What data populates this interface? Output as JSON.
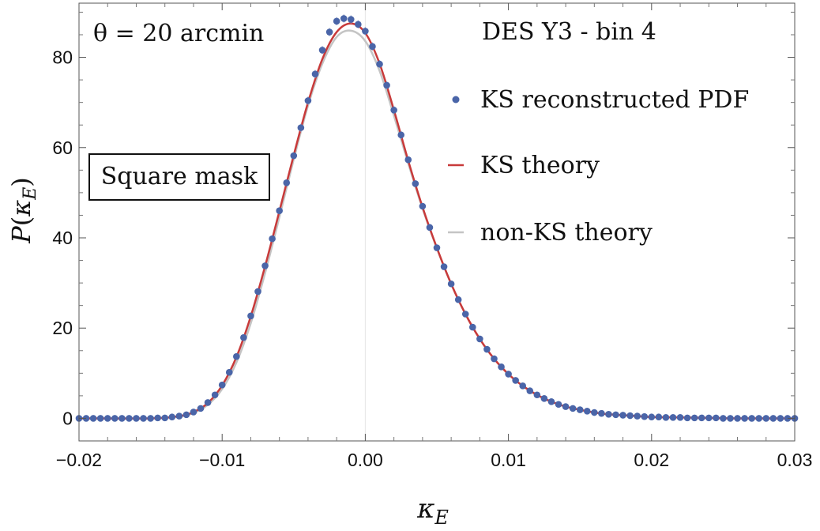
{
  "chart_data": {
    "type": "scatter",
    "xlabel": "κE",
    "ylabel": "P(κE)",
    "xlim": [
      -0.02,
      0.03
    ],
    "ylim": [
      -5,
      92
    ],
    "xticks": [
      -0.02,
      -0.01,
      0.0,
      0.01,
      0.02,
      0.03
    ],
    "xtick_labels": [
      "−0.02",
      "−0.01",
      "0.00",
      "0.01",
      "0.02",
      "0.03"
    ],
    "yticks": [
      0,
      20,
      40,
      60,
      80
    ],
    "ytick_labels": [
      "0",
      "20",
      "40",
      "60",
      "80"
    ],
    "annotations": {
      "theta": "θ = 20 arcmin",
      "survey": "DES Y3 - bin 4",
      "mask": "Square mask"
    },
    "legend": {
      "placement": "right",
      "entries": [
        "KS reconstructed PDF",
        "KS theory",
        "non-KS theory"
      ]
    },
    "series": [
      {
        "name": "KS reconstructed PDF",
        "kind": "points",
        "color": "#4a65a8",
        "x": [
          -0.02,
          -0.0195,
          -0.019,
          -0.0185,
          -0.018,
          -0.0175,
          -0.017,
          -0.0165,
          -0.016,
          -0.0155,
          -0.015,
          -0.0145,
          -0.014,
          -0.0135,
          -0.013,
          -0.0125,
          -0.012,
          -0.0115,
          -0.011,
          -0.0105,
          -0.01,
          -0.0095,
          -0.009,
          -0.0085,
          -0.008,
          -0.0075,
          -0.007,
          -0.0065,
          -0.006,
          -0.0055,
          -0.005,
          -0.0045,
          -0.004,
          -0.0035,
          -0.003,
          -0.0025,
          -0.002,
          -0.0015,
          -0.001,
          -0.0005,
          0.0,
          0.0005,
          0.001,
          0.0015,
          0.002,
          0.0025,
          0.003,
          0.0035,
          0.004,
          0.0045,
          0.005,
          0.0055,
          0.006,
          0.0065,
          0.007,
          0.0075,
          0.008,
          0.0085,
          0.009,
          0.0095,
          0.01,
          0.0105,
          0.011,
          0.0115,
          0.012,
          0.0125,
          0.013,
          0.0135,
          0.014,
          0.0145,
          0.015,
          0.0155,
          0.016,
          0.0165,
          0.017,
          0.0175,
          0.018,
          0.0185,
          0.019,
          0.0195,
          0.02,
          0.0205,
          0.021,
          0.0215,
          0.022,
          0.0225,
          0.023,
          0.0235,
          0.024,
          0.0245,
          0.025,
          0.0255,
          0.026,
          0.0265,
          0.027,
          0.0275,
          0.028,
          0.0285,
          0.029,
          0.0295,
          0.03
        ],
        "y": [
          0.0,
          0.0,
          0.0,
          0.0,
          0.0,
          0.0,
          0.0,
          0.0,
          0.0,
          0.0,
          0.0,
          0.1,
          0.1,
          0.3,
          0.5,
          0.8,
          1.4,
          2.2,
          3.5,
          5.2,
          7.4,
          10.2,
          13.7,
          17.9,
          22.7,
          28.1,
          33.8,
          39.8,
          46.0,
          52.2,
          58.2,
          64.4,
          70.4,
          76.3,
          81.6,
          85.6,
          88.0,
          88.6,
          88.4,
          87.3,
          85.8,
          82.4,
          78.5,
          73.8,
          68.3,
          62.8,
          57.3,
          52.0,
          47.0,
          42.3,
          37.8,
          33.6,
          29.8,
          26.3,
          23.1,
          20.2,
          17.6,
          15.3,
          13.2,
          11.4,
          9.8,
          8.4,
          7.2,
          6.1,
          5.2,
          4.4,
          3.7,
          3.1,
          2.6,
          2.2,
          1.9,
          1.6,
          1.3,
          1.1,
          0.9,
          0.8,
          0.7,
          0.6,
          0.5,
          0.4,
          0.3,
          0.3,
          0.2,
          0.2,
          0.2,
          0.1,
          0.1,
          0.1,
          0.1,
          0.1,
          0.0,
          0.0,
          0.0,
          0.0,
          0.0,
          0.0,
          0.0,
          0.0,
          0.0,
          0.0,
          0.0
        ]
      },
      {
        "name": "KS theory",
        "kind": "line",
        "color": "#c83a3a",
        "x": [
          -0.02,
          -0.015,
          -0.013,
          -0.012,
          -0.011,
          -0.01,
          -0.009,
          -0.008,
          -0.007,
          -0.006,
          -0.005,
          -0.004,
          -0.003,
          -0.002,
          -0.001,
          0.0,
          0.001,
          0.002,
          0.003,
          0.004,
          0.005,
          0.006,
          0.007,
          0.008,
          0.009,
          0.01,
          0.011,
          0.012,
          0.013,
          0.014,
          0.015,
          0.016,
          0.017,
          0.018,
          0.019,
          0.02,
          0.022,
          0.024,
          0.026,
          0.03
        ],
        "y": [
          0.0,
          0.0,
          0.5,
          1.4,
          3.4,
          7.3,
          13.6,
          22.6,
          33.7,
          45.9,
          58.3,
          70.0,
          79.6,
          85.6,
          87.5,
          85.4,
          78.6,
          68.3,
          57.1,
          46.8,
          37.8,
          29.8,
          23.1,
          17.6,
          13.2,
          9.8,
          7.2,
          5.2,
          3.7,
          2.6,
          1.9,
          1.3,
          0.9,
          0.7,
          0.5,
          0.3,
          0.2,
          0.1,
          0.0,
          0.0
        ]
      },
      {
        "name": "non-KS theory",
        "kind": "line",
        "color": "#c4c4c4",
        "x": [
          -0.02,
          -0.015,
          -0.013,
          -0.012,
          -0.011,
          -0.01,
          -0.009,
          -0.008,
          -0.007,
          -0.006,
          -0.005,
          -0.004,
          -0.003,
          -0.002,
          -0.001,
          0.0,
          0.001,
          0.002,
          0.003,
          0.004,
          0.005,
          0.006,
          0.007,
          0.008,
          0.009,
          0.01,
          0.011,
          0.012,
          0.013,
          0.014,
          0.015,
          0.016,
          0.017,
          0.018,
          0.019,
          0.02,
          0.022,
          0.024,
          0.026,
          0.03
        ],
        "y": [
          0.0,
          0.0,
          0.4,
          1.2,
          3.0,
          6.5,
          12.4,
          21.1,
          32.2,
          44.6,
          57.4,
          69.3,
          78.6,
          84.5,
          85.9,
          83.6,
          77.0,
          67.1,
          56.5,
          46.5,
          37.7,
          29.8,
          23.1,
          17.6,
          13.2,
          9.8,
          7.2,
          5.2,
          3.7,
          2.6,
          1.9,
          1.3,
          0.9,
          0.7,
          0.5,
          0.3,
          0.2,
          0.1,
          0.0,
          0.0
        ]
      }
    ],
    "grid": false
  }
}
